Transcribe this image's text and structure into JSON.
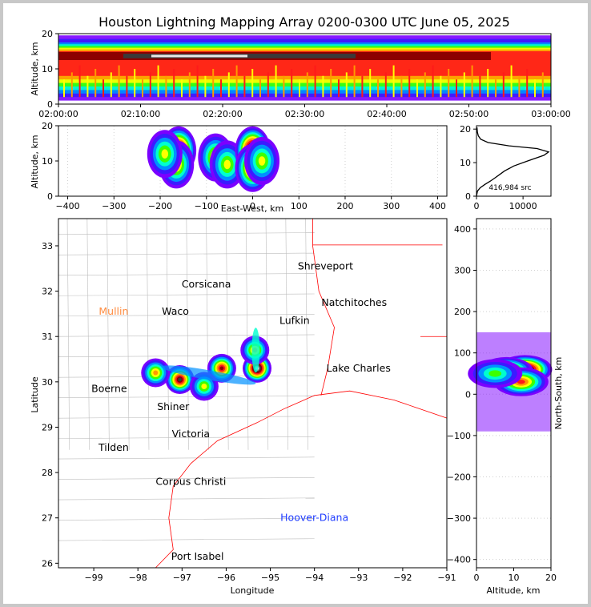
{
  "title": "Houston Lightning Mapping Array 0200-0300 UTC June 05, 2025",
  "colors": {
    "density_scale": [
      "#7b00ff",
      "#3b1bff",
      "#0091ff",
      "#00ffd0",
      "#3cff00",
      "#ffff00",
      "#ff9900",
      "#ff1a1a",
      "#8c0000",
      "#3a3a3a",
      "#9a9a9a",
      "#e8e8e8"
    ],
    "state_border": "#ff0000",
    "county_border": "#bdbdbd",
    "altitude_profile_line": "#000000"
  },
  "chart_data": [
    {
      "id": "time-height",
      "type": "heatmap",
      "ylabel": "Altitude, km",
      "ylim": [
        0,
        20
      ],
      "yticks": [
        "0",
        "10",
        "20"
      ],
      "xticks": [
        "02:00:00",
        "02:10:00",
        "02:20:00",
        "02:30:00",
        "02:40:00",
        "02:50:00",
        "03:00:00"
      ],
      "xlim": [
        "02:00:00",
        "03:00:00"
      ]
    },
    {
      "id": "east-west-height",
      "type": "heatmap",
      "xlabel": "East-West, km",
      "ylabel": "Altitude, km",
      "xlim": [
        -420,
        420
      ],
      "ylim": [
        0,
        20
      ],
      "xticks": [
        "−400",
        "−300",
        "−200",
        "−100",
        "0",
        "100",
        "200",
        "300",
        "400"
      ],
      "yticks": [
        "0",
        "10",
        "20"
      ],
      "cells": [
        {
          "x": -160,
          "y": 13,
          "d": 10
        },
        {
          "x": -165,
          "y": 9,
          "d": 6
        },
        {
          "x": -190,
          "y": 12,
          "d": 5
        },
        {
          "x": -80,
          "y": 11,
          "d": 6
        },
        {
          "x": -55,
          "y": 9,
          "d": 5
        },
        {
          "x": 0,
          "y": 13,
          "d": 11
        },
        {
          "x": 0,
          "y": 8,
          "d": 8
        },
        {
          "x": 20,
          "y": 10,
          "d": 5
        }
      ]
    },
    {
      "id": "altitude-histogram",
      "type": "line",
      "annotation": "416,984 src",
      "xlim": [
        0,
        16000
      ],
      "ylim": [
        0,
        21
      ],
      "xticks": [
        "0",
        "10000"
      ],
      "yticks": [
        "0",
        "10",
        "20"
      ],
      "x": [
        0,
        200,
        800,
        1800,
        3000,
        4000,
        5000,
        6000,
        8000,
        11000,
        14500,
        15500,
        13000,
        7000,
        2500,
        900,
        400,
        200,
        100
      ],
      "y": [
        0,
        1.5,
        2.5,
        3.5,
        4.5,
        5.5,
        6.5,
        7.5,
        9,
        10.5,
        12.2,
        13.2,
        14.2,
        15,
        16,
        17,
        18,
        19,
        20.5
      ]
    },
    {
      "id": "plan-view-map",
      "type": "heatmap",
      "xlabel": "Longitude",
      "ylabel": "Latitude",
      "xlim": [
        -99.8,
        -91
      ],
      "ylim": [
        25.9,
        33.6
      ],
      "xticks": [
        "−99",
        "−98",
        "−97",
        "−96",
        "−95",
        "−94",
        "−93",
        "−92",
        "−91"
      ],
      "yticks": [
        "26",
        "27",
        "28",
        "29",
        "30",
        "31",
        "32",
        "33"
      ],
      "cells": [
        {
          "x": -95.3,
          "y": 30.3,
          "d": 11
        },
        {
          "x": -95.35,
          "y": 30.7,
          "d": 6
        },
        {
          "x": -97.05,
          "y": 30.05,
          "d": 9
        },
        {
          "x": -97.6,
          "y": 30.2,
          "d": 6
        },
        {
          "x": -96.1,
          "y": 30.3,
          "d": 8
        },
        {
          "x": -96.5,
          "y": 29.9,
          "d": 5
        }
      ],
      "places": [
        {
          "name": "Shreveport",
          "lon": -93.75,
          "lat": 32.55,
          "color": "#000000"
        },
        {
          "name": "Corsicana",
          "lon": -96.45,
          "lat": 32.15,
          "color": "#000000"
        },
        {
          "name": "Natchitoches",
          "lon": -93.1,
          "lat": 31.75,
          "color": "#000000"
        },
        {
          "name": "Mullin",
          "lon": -98.55,
          "lat": 31.55,
          "color": "#ff8c40"
        },
        {
          "name": "Waco",
          "lon": -97.15,
          "lat": 31.55,
          "color": "#000000"
        },
        {
          "name": "Lufkin",
          "lon": -94.45,
          "lat": 31.35,
          "color": "#000000"
        },
        {
          "name": "Lake Charles",
          "lon": -93.0,
          "lat": 30.3,
          "color": "#000000"
        },
        {
          "name": "Boerne",
          "lon": -98.65,
          "lat": 29.85,
          "color": "#000000"
        },
        {
          "name": "Shiner",
          "lon": -97.2,
          "lat": 29.45,
          "color": "#000000"
        },
        {
          "name": "Victoria",
          "lon": -96.8,
          "lat": 28.85,
          "color": "#000000"
        },
        {
          "name": "Tilden",
          "lon": -98.55,
          "lat": 28.55,
          "color": "#000000"
        },
        {
          "name": "Corpus Christi",
          "lon": -96.8,
          "lat": 27.8,
          "color": "#000000"
        },
        {
          "name": "Hoover-Diana",
          "lon": -94.0,
          "lat": 27.0,
          "color": "#1f3cff"
        },
        {
          "name": "Port Isabel",
          "lon": -96.65,
          "lat": 26.15,
          "color": "#000000"
        }
      ]
    },
    {
      "id": "north-south-height",
      "type": "heatmap",
      "xlabel": "Altitude, km",
      "ylabel": "North-South, km",
      "xlim": [
        0,
        20
      ],
      "ylim": [
        -420,
        425
      ],
      "xticks": [
        "0",
        "10",
        "20"
      ],
      "yticks": [
        "−400",
        "−300",
        "−200",
        "−100",
        "0",
        "100",
        "200",
        "300",
        "400"
      ],
      "cells": [
        {
          "x": 13,
          "y": 60,
          "d": 11
        },
        {
          "x": 8,
          "y": 55,
          "d": 9
        },
        {
          "x": 12,
          "y": 30,
          "d": 7
        },
        {
          "x": 5,
          "y": 50,
          "d": 4
        }
      ]
    }
  ]
}
